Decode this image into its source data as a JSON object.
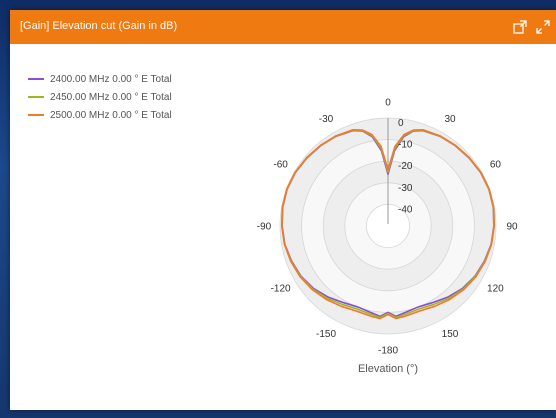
{
  "header": {
    "title": "[Gain] Elevation cut (Gain in dB)"
  },
  "colors": {
    "title_bar": "#ef7a12",
    "panel_background": "#ffffff"
  },
  "icons": {
    "popout": "popout-icon",
    "expand": "expand-icon"
  },
  "chart_data": {
    "type": "polar-line",
    "xlabel": "Elevation (°)",
    "angle_ticks": [
      "0",
      "30",
      "60",
      "90",
      "120",
      "150",
      "-180",
      "-150",
      "-120",
      "-90",
      "-60",
      "-30"
    ],
    "angle_tick_values": [
      0,
      30,
      60,
      90,
      120,
      150,
      180,
      210,
      240,
      270,
      300,
      330
    ],
    "radial_ticks": [
      "0",
      "-10",
      "-20",
      "-30",
      "-40"
    ],
    "radial_tick_values": [
      0,
      -10,
      -20,
      -30,
      -40
    ],
    "rlim": [
      -50,
      0
    ],
    "legend_position": "top-left",
    "series": [
      {
        "name": "2400.00 MHz 0.00 ° E Total",
        "color": "#8a4fd8",
        "angles": [
          0,
          5,
          10,
          15,
          20,
          30,
          40,
          50,
          60,
          70,
          80,
          90,
          100,
          110,
          120,
          130,
          140,
          150,
          160,
          170,
          175,
          180,
          185,
          190,
          200,
          210,
          220,
          230,
          240,
          250,
          260,
          270,
          280,
          290,
          300,
          310,
          320,
          330,
          340,
          345,
          350,
          355
        ],
        "values": [
          -26,
          -15,
          -8,
          -4.5,
          -3,
          -2,
          -1.5,
          -1,
          -0.5,
          -0.3,
          -0.5,
          -1,
          -1.5,
          -2.5,
          -3.5,
          -5,
          -7,
          -9,
          -10,
          -9,
          -8,
          -10,
          -8,
          -9,
          -10,
          -9,
          -7,
          -5,
          -3.5,
          -2.5,
          -1.5,
          -1,
          -0.5,
          -0.3,
          -0.5,
          -1,
          -1.5,
          -2,
          -3,
          -4.5,
          -8,
          -15
        ]
      },
      {
        "name": "2450.00 MHz 0.00 ° E Total",
        "color": "#a0b820",
        "angles": [
          0,
          5,
          10,
          15,
          20,
          30,
          40,
          50,
          60,
          70,
          80,
          90,
          100,
          110,
          120,
          130,
          140,
          150,
          160,
          170,
          175,
          180,
          185,
          190,
          200,
          210,
          220,
          230,
          240,
          250,
          260,
          270,
          280,
          290,
          300,
          310,
          320,
          330,
          340,
          345,
          350,
          355
        ],
        "values": [
          -25,
          -14,
          -7.5,
          -4.3,
          -2.8,
          -1.9,
          -1.4,
          -0.9,
          -0.4,
          -0.2,
          -0.4,
          -0.9,
          -1.4,
          -2.3,
          -3.3,
          -4.6,
          -6.3,
          -8,
          -9,
          -8.2,
          -7.5,
          -9.5,
          -7.5,
          -8.2,
          -9,
          -8,
          -6.3,
          -4.6,
          -3.3,
          -2.3,
          -1.4,
          -0.9,
          -0.4,
          -0.2,
          -0.4,
          -0.9,
          -1.4,
          -1.9,
          -2.8,
          -4.3,
          -7.5,
          -14
        ]
      },
      {
        "name": "2500.00 MHz 0.00 ° E Total",
        "color": "#f07a2e",
        "angles": [
          0,
          5,
          10,
          15,
          20,
          30,
          40,
          50,
          60,
          70,
          80,
          90,
          100,
          110,
          120,
          130,
          140,
          150,
          160,
          170,
          175,
          180,
          185,
          190,
          200,
          210,
          220,
          230,
          240,
          250,
          260,
          270,
          280,
          290,
          300,
          310,
          320,
          330,
          340,
          345,
          350,
          355
        ],
        "values": [
          -24,
          -13,
          -7,
          -4,
          -2.6,
          -1.8,
          -1.3,
          -0.8,
          -0.3,
          -0.1,
          -0.3,
          -0.8,
          -1.3,
          -2.1,
          -3,
          -4.2,
          -5.6,
          -7,
          -8,
          -7.4,
          -7,
          -9,
          -7,
          -7.4,
          -8,
          -7,
          -5.6,
          -4.2,
          -3,
          -2.1,
          -1.3,
          -0.8,
          -0.3,
          -0.1,
          -0.3,
          -0.8,
          -1.3,
          -1.8,
          -2.6,
          -4,
          -7,
          -13
        ]
      }
    ]
  }
}
